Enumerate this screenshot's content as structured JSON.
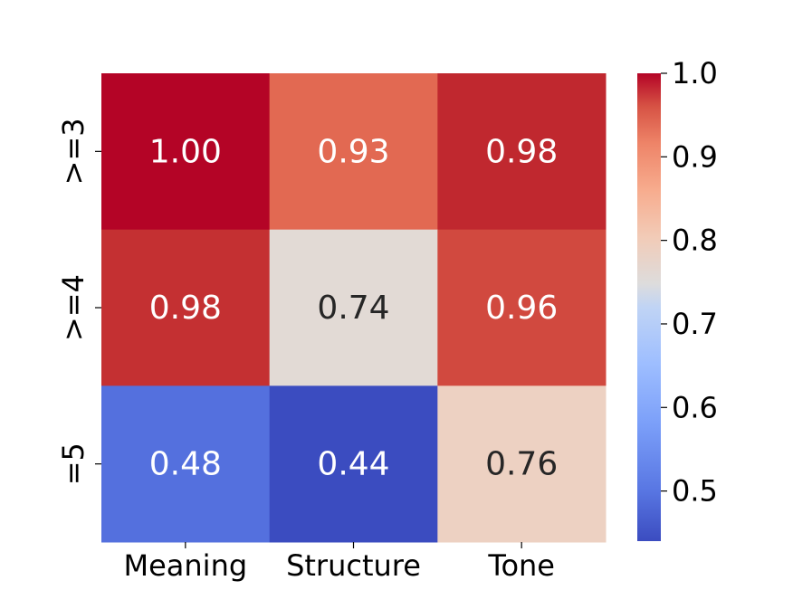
{
  "chart_data": {
    "type": "heatmap",
    "title": "",
    "xlabel": "",
    "ylabel": "",
    "columns": [
      "Meaning",
      "Structure",
      "Tone"
    ],
    "rows": [
      ">=3",
      ">=4",
      "=5"
    ],
    "values": [
      [
        1.0,
        0.93,
        0.98
      ],
      [
        0.98,
        0.74,
        0.96
      ],
      [
        0.48,
        0.44,
        0.76
      ]
    ],
    "value_labels": [
      [
        "1.00",
        "0.93",
        "0.98"
      ],
      [
        "0.98",
        "0.74",
        "0.96"
      ],
      [
        "0.48",
        "0.44",
        "0.76"
      ]
    ],
    "colormap": "coolwarm",
    "vmin": 0.44,
    "vmax": 1.0,
    "colorbar": {
      "ticks": [
        0.5,
        0.6,
        0.7,
        0.8,
        0.9,
        1.0
      ],
      "tick_labels": [
        "0.5",
        "0.6",
        "0.7",
        "0.8",
        "0.9",
        "1.0"
      ]
    },
    "light_text_color": "#ffffff",
    "dark_text_color": "#262626",
    "cell_colors": [
      [
        "#b40426",
        "#e26952",
        "#c0282f"
      ],
      [
        "#c43032",
        "#e2dad5",
        "#d1493f"
      ],
      [
        "#5470de",
        "#3b4cc0",
        "#edd1c2"
      ]
    ]
  }
}
